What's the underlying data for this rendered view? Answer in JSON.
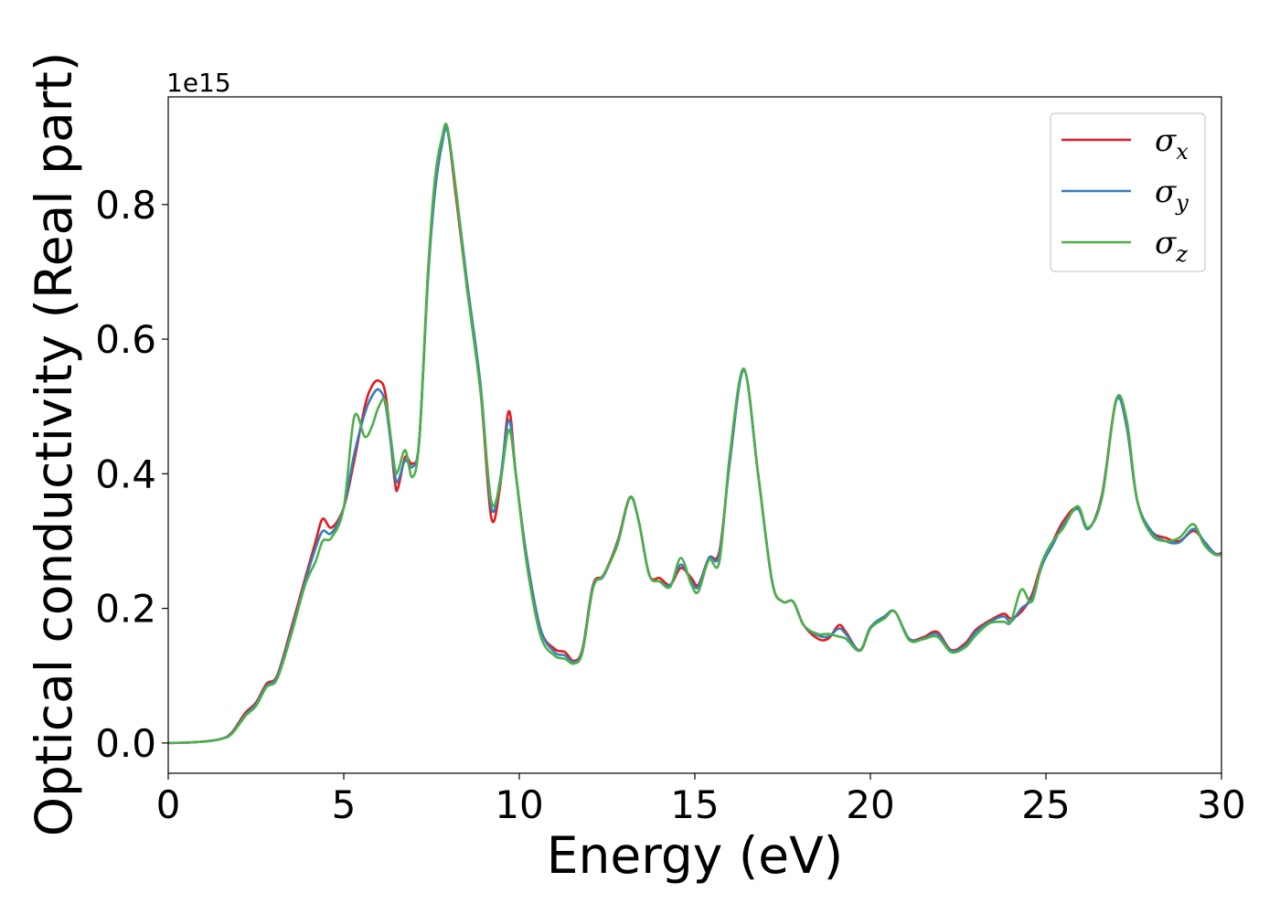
{
  "chart_data": {
    "type": "line",
    "title": "",
    "xlabel": "Energy (eV)",
    "ylabel": "Optical conductivity (Real part)",
    "y_offset_label": "1e15",
    "xlim": [
      0,
      30
    ],
    "ylim": [
      -0.045,
      0.96
    ],
    "y_scale_note": "values shown are multiplied by 1e15",
    "x_ticks": [
      0,
      5,
      10,
      15,
      20,
      25,
      30
    ],
    "x_tick_labels": [
      "0",
      "5",
      "10",
      "15",
      "20",
      "25",
      "30"
    ],
    "y_ticks": [
      0.0,
      0.2,
      0.4,
      0.6,
      0.8
    ],
    "y_tick_labels": [
      "0.0",
      "0.2",
      "0.4",
      "0.6",
      "0.8"
    ],
    "grid": false,
    "legend_position": "top-right",
    "series": [
      {
        "name": "σx",
        "symbol": "σ",
        "subscript": "x",
        "color": "#e41a1c",
        "x": [
          0,
          0.5,
          1,
          1.5,
          1.8,
          2.2,
          2.5,
          2.8,
          3.1,
          3.5,
          3.9,
          4.2,
          4.4,
          4.65,
          5,
          5.3,
          5.6,
          5.8,
          6,
          6.2,
          6.45,
          6.55,
          6.75,
          6.95,
          7.15,
          7.4,
          7.6,
          7.8,
          7.95,
          8.2,
          8.5,
          8.9,
          9.2,
          9.45,
          9.7,
          9.9,
          10.2,
          10.6,
          11,
          11.3,
          11.55,
          11.8,
          12.1,
          12.4,
          12.8,
          13.15,
          13.4,
          13.7,
          14,
          14.3,
          14.6,
          14.9,
          15.1,
          15.4,
          15.7,
          16,
          16.4,
          16.8,
          17.2,
          17.5,
          17.8,
          18.1,
          18.5,
          18.8,
          19.1,
          19.3,
          19.7,
          20,
          20.4,
          20.7,
          21.1,
          21.5,
          21.9,
          22.3,
          22.7,
          23,
          23.4,
          23.8,
          24,
          24.3,
          24.6,
          24.9,
          25.2,
          25.5,
          25.9,
          26.2,
          26.6,
          27,
          27.3,
          27.6,
          28,
          28.4,
          28.8,
          29.2,
          29.5,
          29.8,
          30
        ],
        "y": [
          0,
          0.0005,
          0.002,
          0.006,
          0.015,
          0.045,
          0.06,
          0.088,
          0.1,
          0.17,
          0.245,
          0.3,
          0.333,
          0.32,
          0.35,
          0.42,
          0.5,
          0.53,
          0.538,
          0.515,
          0.39,
          0.38,
          0.425,
          0.415,
          0.45,
          0.7,
          0.83,
          0.895,
          0.912,
          0.81,
          0.68,
          0.52,
          0.335,
          0.38,
          0.493,
          0.4,
          0.28,
          0.17,
          0.14,
          0.135,
          0.122,
          0.14,
          0.235,
          0.25,
          0.3,
          0.365,
          0.33,
          0.25,
          0.245,
          0.235,
          0.26,
          0.245,
          0.235,
          0.275,
          0.285,
          0.42,
          0.555,
          0.4,
          0.24,
          0.21,
          0.21,
          0.175,
          0.155,
          0.155,
          0.175,
          0.165,
          0.137,
          0.17,
          0.188,
          0.195,
          0.155,
          0.157,
          0.165,
          0.138,
          0.148,
          0.168,
          0.182,
          0.192,
          0.185,
          0.195,
          0.22,
          0.27,
          0.3,
          0.33,
          0.35,
          0.318,
          0.37,
          0.51,
          0.47,
          0.36,
          0.315,
          0.305,
          0.3,
          0.315,
          0.3,
          0.282,
          0.282
        ]
      },
      {
        "name": "σy",
        "symbol": "σ",
        "subscript": "y",
        "color": "#377eb8",
        "x": [
          0,
          0.5,
          1,
          1.5,
          1.8,
          2.2,
          2.5,
          2.8,
          3.1,
          3.5,
          3.9,
          4.2,
          4.4,
          4.65,
          5,
          5.3,
          5.6,
          5.8,
          6,
          6.2,
          6.45,
          6.55,
          6.75,
          6.95,
          7.15,
          7.4,
          7.6,
          7.8,
          7.95,
          8.2,
          8.5,
          8.9,
          9.2,
          9.45,
          9.7,
          9.9,
          10.2,
          10.6,
          11,
          11.3,
          11.55,
          11.8,
          12.1,
          12.4,
          12.8,
          13.15,
          13.4,
          13.7,
          14,
          14.3,
          14.6,
          14.9,
          15.1,
          15.4,
          15.7,
          16,
          16.4,
          16.8,
          17.2,
          17.5,
          17.8,
          18.1,
          18.5,
          18.8,
          19.1,
          19.3,
          19.7,
          20,
          20.4,
          20.7,
          21.1,
          21.5,
          21.9,
          22.3,
          22.7,
          23,
          23.4,
          23.8,
          24,
          24.3,
          24.6,
          24.9,
          25.2,
          25.5,
          25.9,
          26.2,
          26.6,
          27,
          27.3,
          27.6,
          28,
          28.4,
          28.8,
          29.2,
          29.5,
          29.8,
          30
        ],
        "y": [
          0,
          0.0005,
          0.002,
          0.006,
          0.014,
          0.042,
          0.058,
          0.085,
          0.098,
          0.165,
          0.24,
          0.29,
          0.315,
          0.312,
          0.35,
          0.43,
          0.49,
          0.515,
          0.525,
          0.5,
          0.4,
          0.39,
          0.42,
          0.41,
          0.45,
          0.69,
          0.82,
          0.89,
          0.91,
          0.82,
          0.69,
          0.53,
          0.35,
          0.39,
          0.48,
          0.4,
          0.28,
          0.17,
          0.135,
          0.13,
          0.12,
          0.138,
          0.233,
          0.248,
          0.298,
          0.364,
          0.33,
          0.25,
          0.24,
          0.235,
          0.265,
          0.24,
          0.232,
          0.275,
          0.28,
          0.42,
          0.554,
          0.4,
          0.24,
          0.21,
          0.21,
          0.175,
          0.16,
          0.158,
          0.17,
          0.162,
          0.138,
          0.172,
          0.188,
          0.195,
          0.155,
          0.155,
          0.162,
          0.137,
          0.145,
          0.165,
          0.18,
          0.188,
          0.18,
          0.2,
          0.215,
          0.265,
          0.295,
          0.325,
          0.348,
          0.318,
          0.368,
          0.508,
          0.47,
          0.36,
          0.315,
          0.3,
          0.298,
          0.318,
          0.3,
          0.282,
          0.28
        ]
      },
      {
        "name": "σz",
        "symbol": "σ",
        "subscript": "z",
        "color": "#4daf4a",
        "x": [
          0,
          0.5,
          1,
          1.5,
          1.8,
          2.2,
          2.5,
          2.8,
          3.1,
          3.5,
          3.9,
          4.2,
          4.4,
          4.65,
          5,
          5.3,
          5.6,
          5.8,
          6,
          6.2,
          6.45,
          6.55,
          6.75,
          6.95,
          7.15,
          7.4,
          7.6,
          7.8,
          7.95,
          8.2,
          8.5,
          8.9,
          9.2,
          9.45,
          9.7,
          9.9,
          10.2,
          10.6,
          11,
          11.3,
          11.55,
          11.8,
          12.1,
          12.4,
          12.8,
          13.15,
          13.4,
          13.7,
          14,
          14.3,
          14.6,
          14.9,
          15.1,
          15.4,
          15.7,
          16,
          16.4,
          16.8,
          17.2,
          17.5,
          17.8,
          18.1,
          18.5,
          18.8,
          19.1,
          19.3,
          19.7,
          20,
          20.4,
          20.7,
          21.1,
          21.5,
          21.9,
          22.3,
          22.7,
          23,
          23.4,
          23.8,
          24,
          24.3,
          24.6,
          24.9,
          25.2,
          25.5,
          25.9,
          26.2,
          26.6,
          27,
          27.3,
          27.6,
          28,
          28.4,
          28.8,
          29.2,
          29.5,
          29.8,
          30
        ],
        "y": [
          0,
          0.0005,
          0.002,
          0.006,
          0.013,
          0.04,
          0.055,
          0.083,
          0.095,
          0.16,
          0.235,
          0.27,
          0.3,
          0.305,
          0.35,
          0.485,
          0.455,
          0.47,
          0.5,
          0.505,
          0.41,
          0.405,
          0.435,
          0.395,
          0.45,
          0.7,
          0.84,
          0.9,
          0.915,
          0.82,
          0.68,
          0.52,
          0.36,
          0.385,
          0.465,
          0.4,
          0.27,
          0.16,
          0.13,
          0.125,
          0.118,
          0.135,
          0.23,
          0.25,
          0.295,
          0.365,
          0.33,
          0.25,
          0.24,
          0.232,
          0.275,
          0.235,
          0.225,
          0.272,
          0.27,
          0.43,
          0.556,
          0.4,
          0.24,
          0.21,
          0.21,
          0.175,
          0.162,
          0.162,
          0.158,
          0.155,
          0.137,
          0.17,
          0.185,
          0.195,
          0.153,
          0.154,
          0.158,
          0.135,
          0.142,
          0.16,
          0.178,
          0.18,
          0.18,
          0.228,
          0.21,
          0.27,
          0.3,
          0.32,
          0.352,
          0.32,
          0.365,
          0.51,
          0.48,
          0.36,
          0.31,
          0.3,
          0.305,
          0.325,
          0.295,
          0.28,
          0.28
        ]
      }
    ]
  }
}
